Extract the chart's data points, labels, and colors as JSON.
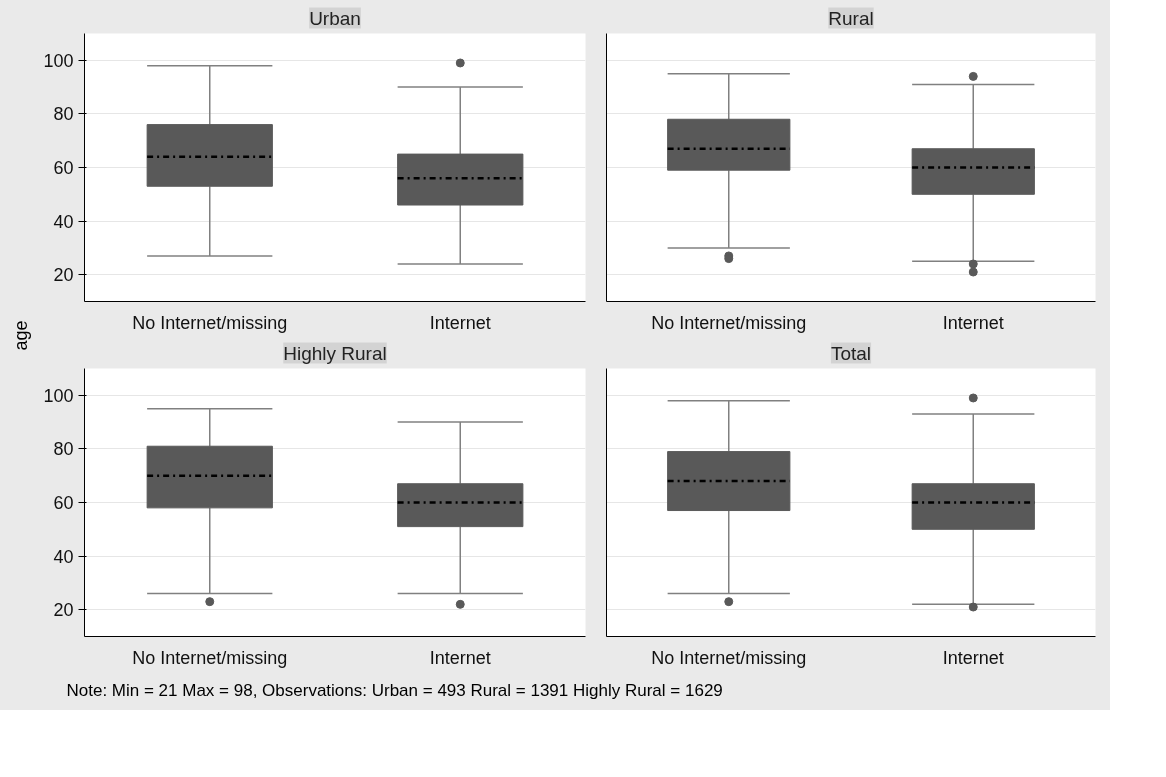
{
  "chart_data": [
    {
      "type": "box",
      "title": "Urban",
      "ylabel": "age",
      "categories": [
        "No Internet/missing",
        "Internet"
      ],
      "ylim": [
        10,
        110
      ],
      "yticks": [
        20,
        40,
        60,
        80,
        100
      ],
      "grid": "y",
      "tick_labels": "xy",
      "color": "#595959",
      "boxes": [
        {
          "low": 27,
          "q1": 53,
          "median": 64,
          "q3": 76,
          "high": 98
        },
        {
          "low": 24,
          "q1": 46,
          "median": 56,
          "q3": 65,
          "high": 90,
          "outliers": [
            99
          ]
        }
      ]
    },
    {
      "type": "box",
      "title": "Rural",
      "categories": [
        "No Internet/missing",
        "Internet"
      ],
      "ylim": [
        10,
        110
      ],
      "yticks": [
        20,
        40,
        60,
        80,
        100
      ],
      "grid": "y",
      "tick_labels": "x",
      "color": "#595959",
      "boxes": [
        {
          "low": 30,
          "q1": 59,
          "median": 67,
          "q3": 78,
          "high": 95,
          "outliers": [
            27,
            26
          ]
        },
        {
          "low": 25,
          "q1": 50,
          "median": 60,
          "q3": 67,
          "high": 91,
          "outliers": [
            94,
            24,
            21
          ]
        }
      ]
    },
    {
      "type": "box",
      "title": "Highly Rural",
      "categories": [
        "No Internet/missing",
        "Internet"
      ],
      "ylim": [
        10,
        110
      ],
      "yticks": [
        20,
        40,
        60,
        80,
        100
      ],
      "grid": "y",
      "tick_labels": "xy",
      "color": "#595959",
      "boxes": [
        {
          "low": 26,
          "q1": 58,
          "median": 70,
          "q3": 81,
          "high": 95,
          "outliers": [
            23
          ]
        },
        {
          "low": 26,
          "q1": 51,
          "median": 60,
          "q3": 67,
          "high": 90,
          "outliers": [
            22
          ]
        }
      ]
    },
    {
      "type": "box",
      "title": "Total",
      "categories": [
        "No Internet/missing",
        "Internet"
      ],
      "ylim": [
        10,
        110
      ],
      "yticks": [
        20,
        40,
        60,
        80,
        100
      ],
      "grid": "y",
      "tick_labels": "x",
      "color": "#595959",
      "boxes": [
        {
          "low": 26,
          "q1": 57,
          "median": 68,
          "q3": 79,
          "high": 98,
          "outliers": [
            23
          ]
        },
        {
          "low": 22,
          "q1": 50,
          "median": 60,
          "q3": 67,
          "high": 93,
          "outliers": [
            99,
            21
          ]
        }
      ],
      "annotations": [
        "Note: Min = 21 Max = 98, Observations: Urban = 493 Rural = 1391 Highly Rural = 1629"
      ]
    }
  ]
}
